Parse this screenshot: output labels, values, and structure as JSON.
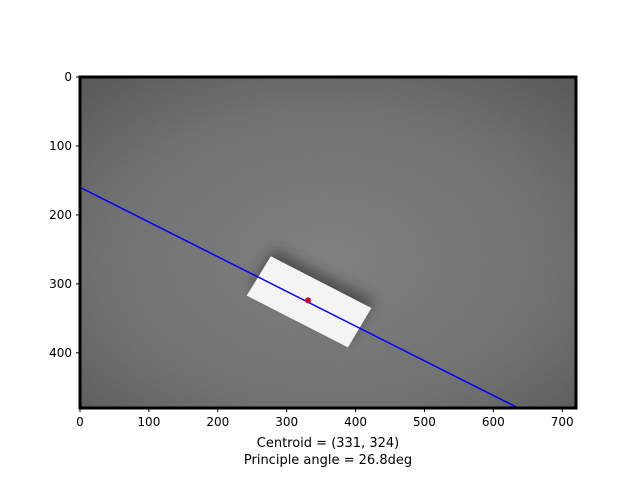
{
  "chart_data": {
    "type": "image",
    "title": "",
    "xlabel_lines": [
      "Centroid = (331, 324)",
      "Principle angle = 26.8deg"
    ],
    "ylabel": "",
    "x_ticks": [
      0,
      100,
      200,
      300,
      400,
      500,
      600,
      700
    ],
    "y_ticks": [
      0,
      100,
      200,
      300,
      400
    ],
    "xlim": [
      0,
      720
    ],
    "ylim": [
      480,
      0
    ],
    "y_inverted": true,
    "image_extent": {
      "width": 720,
      "height": 480
    },
    "centroid": {
      "x": 331,
      "y": 324
    },
    "principal_angle_deg": 26.8,
    "principal_axis_line": {
      "x": [
        0,
        636
      ],
      "y": [
        160,
        480
      ]
    },
    "object_rectangle_corners": [
      [
        277,
        260
      ],
      [
        423,
        335
      ],
      [
        389,
        392
      ],
      [
        242,
        317
      ]
    ],
    "colors": {
      "background_gray": "#6e6e6e",
      "object": "#f4f4f4",
      "axis_line": "#0000ff",
      "centroid_marker": "#cc0033"
    },
    "grid": false,
    "legend": "none"
  }
}
